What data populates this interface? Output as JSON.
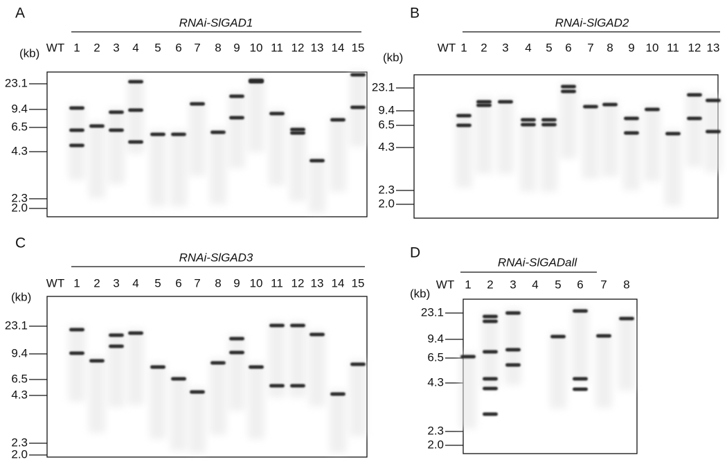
{
  "panels": [
    {
      "label": "A",
      "title": "RNAi-SlGAD1",
      "unit": "(kb)",
      "lanes": [
        "WT",
        "1",
        "2",
        "3",
        "4",
        "5",
        "6",
        "7",
        "8",
        "9",
        "10",
        "11",
        "12",
        "13",
        "14",
        "15"
      ],
      "markers": [
        "23.1",
        "9.4",
        "6.5",
        "4.3",
        "2.3",
        "2.0"
      ]
    },
    {
      "label": "B",
      "title": "RNAi-SlGAD2",
      "unit": "(kb)",
      "lanes": [
        "WT",
        "1",
        "2",
        "3",
        "4",
        "5",
        "6",
        "7",
        "8",
        "9",
        "10",
        "11",
        "12",
        "13"
      ],
      "markers": [
        "23.1",
        "9.4",
        "6.5",
        "4.3",
        "2.3",
        "2.0"
      ]
    },
    {
      "label": "C",
      "title": "RNAi-SlGAD3",
      "unit": "(kb)",
      "lanes": [
        "WT",
        "1",
        "2",
        "3",
        "4",
        "5",
        "6",
        "7",
        "8",
        "9",
        "10",
        "11",
        "12",
        "13",
        "14",
        "15"
      ],
      "markers": [
        "23.1",
        "9.4",
        "6.5",
        "4.3",
        "2.3",
        "2.0"
      ]
    },
    {
      "label": "D",
      "title": "RNAi-SlGADall",
      "unit": "(kb)",
      "lanes": [
        "WT",
        "1",
        "2",
        "3",
        "4",
        "5",
        "6",
        "7",
        "8"
      ],
      "markers": [
        "23.1",
        "9.4",
        "6.5",
        "4.3",
        "2.3",
        "2.0"
      ]
    }
  ]
}
